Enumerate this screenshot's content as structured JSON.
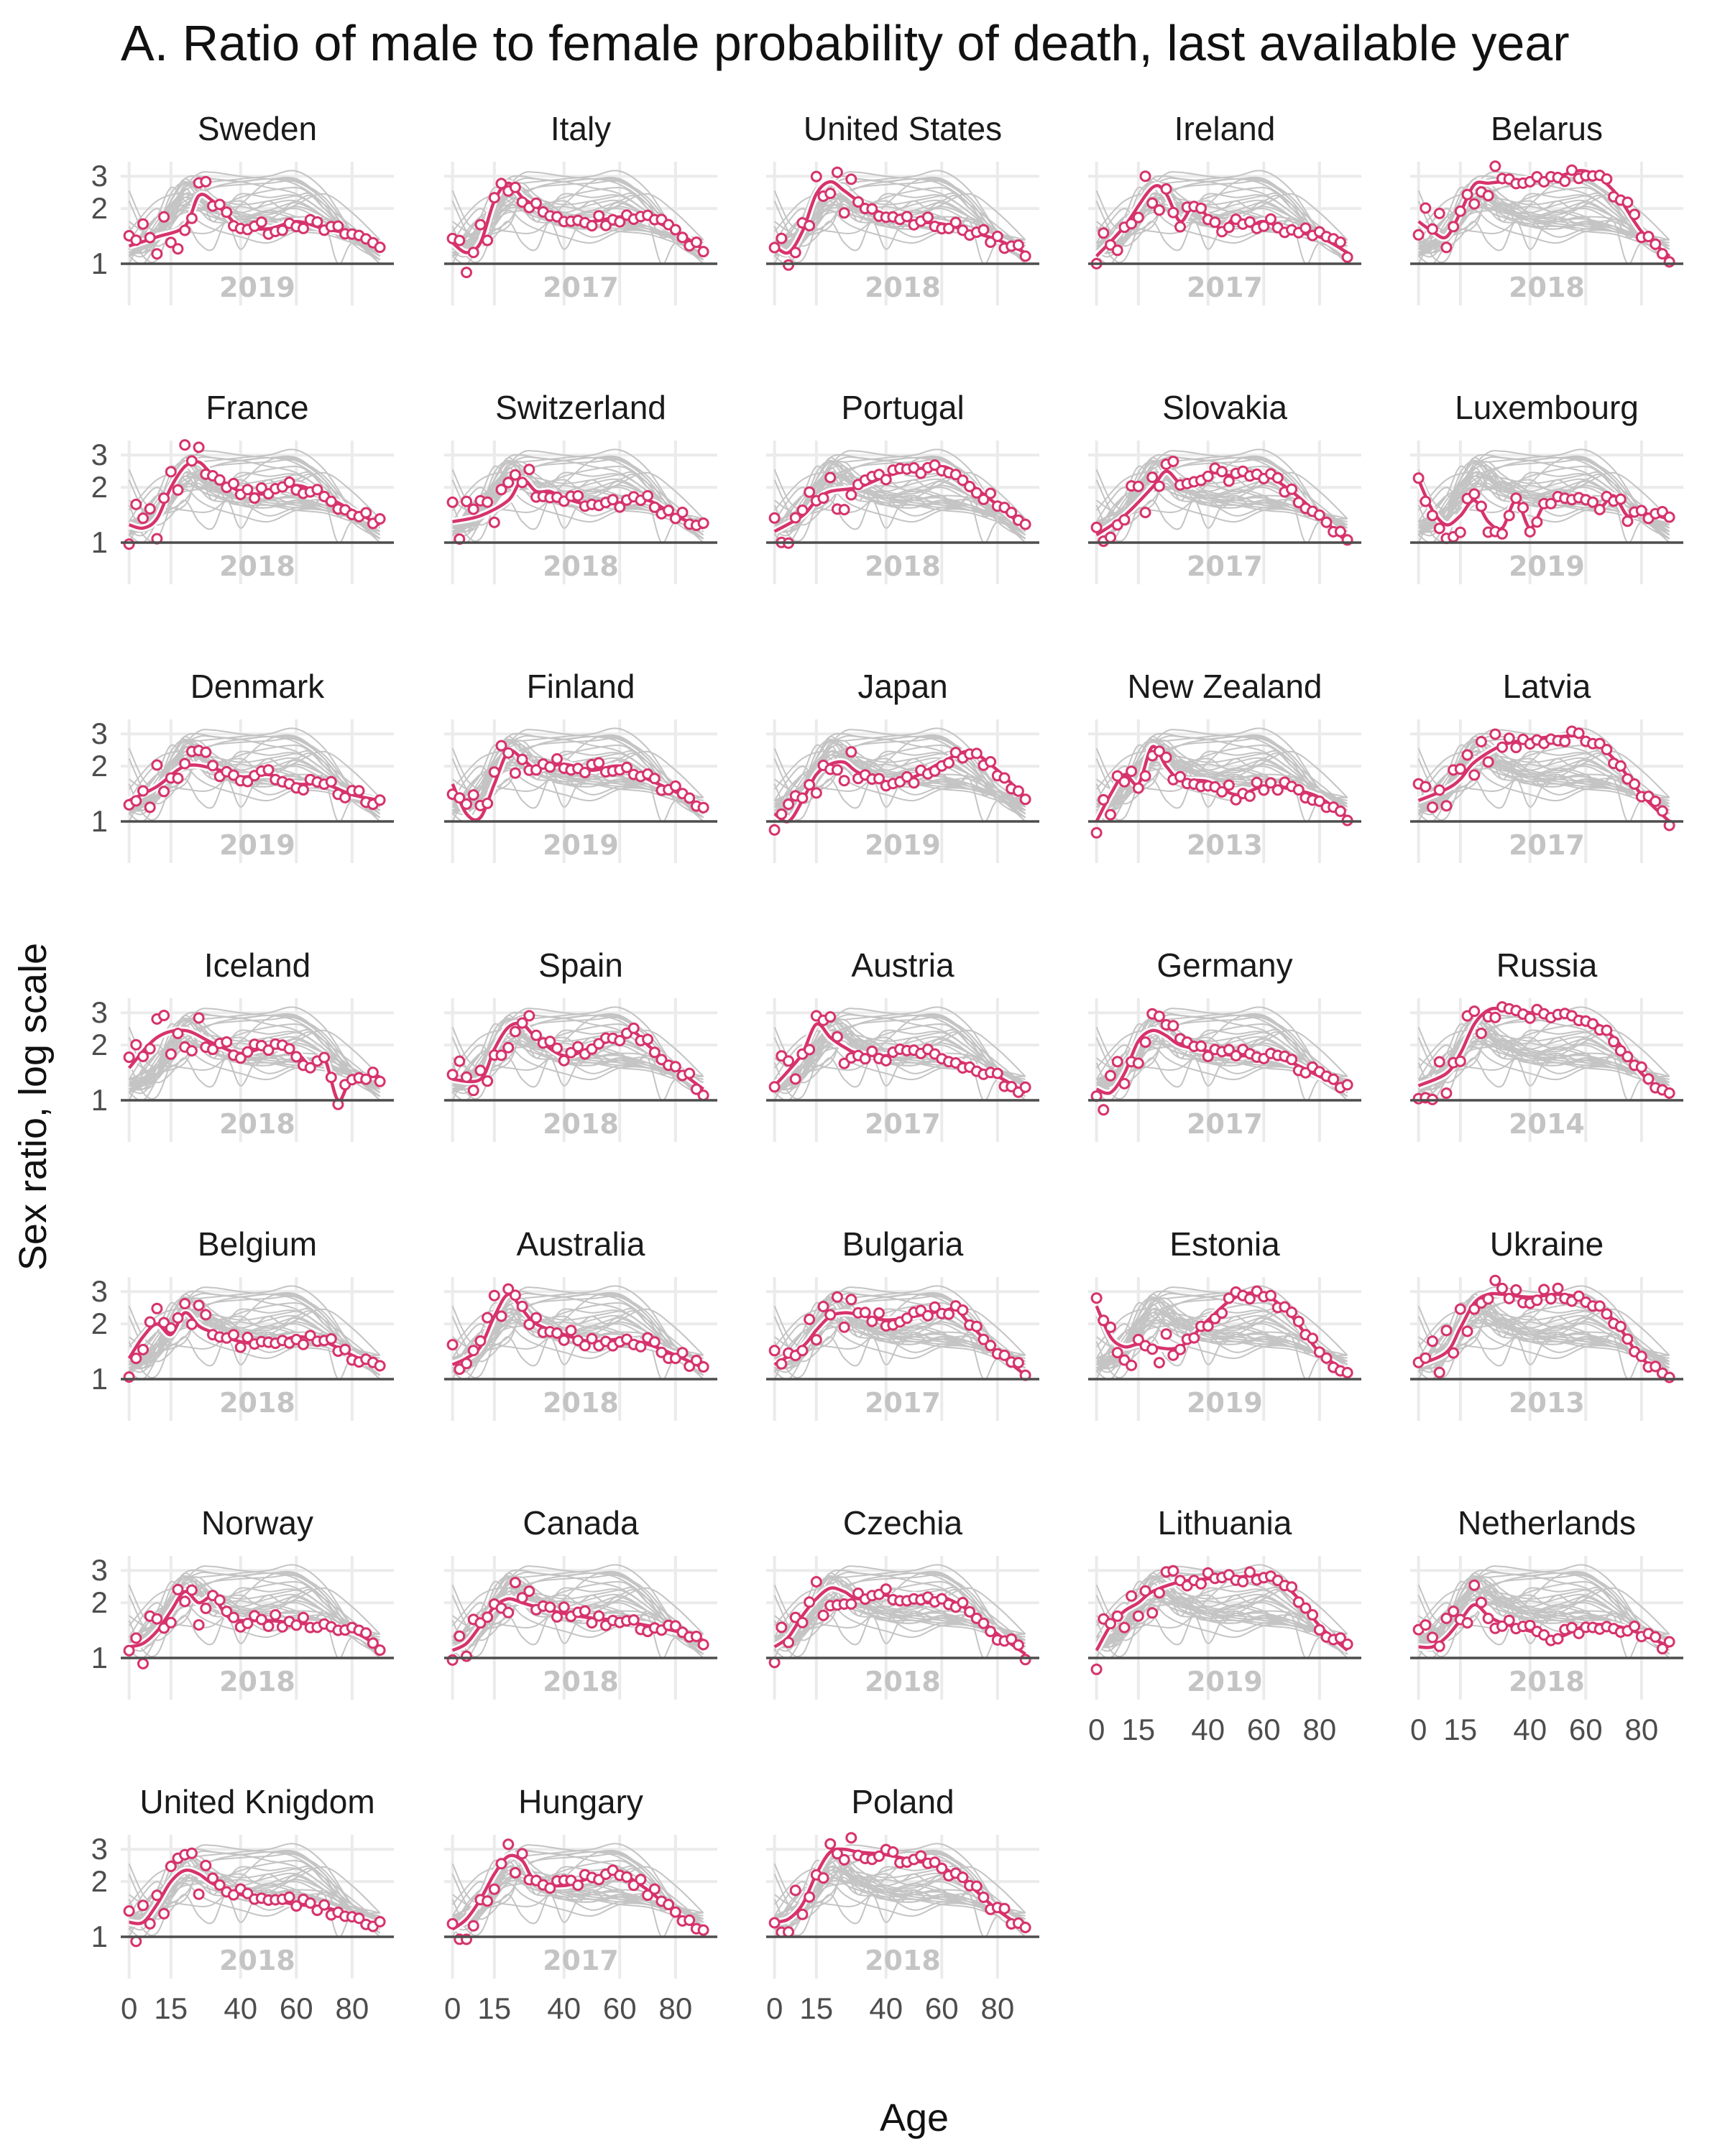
{
  "title": "A. Ratio of male to female probability of death, last available year",
  "xlabel": "Age",
  "ylabel": "Sex ratio, log scale",
  "colors": {
    "highlight": "#d6336c",
    "background_lines": "#c4c4c4",
    "grid": "#ebebeb",
    "baseline": "#4d4d4d",
    "year_label": "#c4c4c4"
  },
  "chart_data": {
    "type": "line",
    "description_of_encoding": "small multiples; one panel per country; each country's smoothed curve highlighted with observed points, all other countries drawn in grey",
    "x_axis": {
      "label": "Age",
      "ticks": [
        0,
        15,
        40,
        60,
        80
      ],
      "range": [
        -3,
        95
      ]
    },
    "y_axis": {
      "label": "Sex ratio, log scale",
      "scale": "log",
      "ticks": [
        1,
        2,
        3
      ],
      "range": [
        0.85,
        3.6
      ]
    },
    "grid": true,
    "facets": [
      {
        "country": "Sweden",
        "year": "2019",
        "x": [
          0,
          10,
          20,
          25,
          30,
          35,
          40,
          50,
          60,
          70,
          80,
          90
        ],
        "y": [
          1.25,
          1.4,
          1.6,
          2.35,
          2.2,
          1.85,
          1.6,
          1.55,
          1.7,
          1.55,
          1.45,
          1.25
        ]
      },
      {
        "country": "Italy",
        "year": "2017",
        "x": [
          0,
          5,
          10,
          15,
          20,
          25,
          30,
          35,
          40,
          50,
          60,
          70,
          80,
          90
        ],
        "y": [
          1.3,
          1.15,
          1.3,
          2.2,
          2.75,
          2.3,
          2.05,
          1.8,
          1.75,
          1.7,
          1.8,
          1.75,
          1.5,
          1.2
        ]
      },
      {
        "country": "United States",
        "year": "2018",
        "x": [
          0,
          5,
          10,
          15,
          20,
          25,
          30,
          35,
          40,
          50,
          60,
          70,
          80,
          90
        ],
        "y": [
          1.25,
          1.15,
          1.5,
          2.4,
          2.8,
          2.5,
          2.2,
          2.0,
          1.85,
          1.7,
          1.65,
          1.5,
          1.35,
          1.15
        ]
      },
      {
        "country": "Ireland",
        "year": "2017",
        "x": [
          0,
          10,
          20,
          25,
          30,
          35,
          40,
          45,
          50,
          55,
          60,
          70,
          80,
          90
        ],
        "y": [
          1.1,
          1.6,
          2.6,
          2.4,
          1.7,
          2.1,
          1.8,
          1.55,
          1.8,
          1.6,
          1.7,
          1.5,
          1.4,
          1.15
        ]
      },
      {
        "country": "Belarus",
        "year": "2018",
        "x": [
          0,
          5,
          10,
          15,
          20,
          25,
          30,
          40,
          50,
          60,
          70,
          80,
          90
        ],
        "y": [
          1.7,
          1.5,
          1.4,
          1.9,
          2.7,
          2.75,
          2.8,
          2.9,
          3.0,
          3.2,
          2.5,
          1.5,
          1.1
        ]
      },
      {
        "country": "France",
        "year": "2018",
        "x": [
          0,
          5,
          10,
          15,
          20,
          25,
          30,
          40,
          50,
          60,
          70,
          80,
          90
        ],
        "y": [
          1.25,
          1.2,
          1.35,
          2.0,
          2.6,
          2.75,
          2.35,
          1.9,
          1.85,
          2.05,
          1.8,
          1.5,
          1.25
        ]
      },
      {
        "country": "Switzerland",
        "year": "2018",
        "x": [
          0,
          10,
          20,
          25,
          30,
          35,
          40,
          50,
          60,
          70,
          80,
          90
        ],
        "y": [
          1.3,
          1.4,
          1.7,
          2.2,
          1.9,
          1.9,
          1.75,
          1.6,
          1.65,
          1.7,
          1.4,
          1.2
        ]
      },
      {
        "country": "Portugal",
        "year": "2018",
        "x": [
          0,
          10,
          15,
          20,
          30,
          40,
          50,
          60,
          65,
          70,
          80,
          90
        ],
        "y": [
          1.15,
          1.4,
          1.7,
          1.9,
          2.0,
          2.3,
          2.5,
          2.6,
          2.4,
          2.1,
          1.6,
          1.2
        ]
      },
      {
        "country": "Slovakia",
        "year": "2017",
        "x": [
          0,
          10,
          20,
          25,
          30,
          35,
          40,
          50,
          60,
          70,
          80,
          90
        ],
        "y": [
          1.1,
          1.4,
          2.0,
          2.45,
          2.1,
          2.05,
          2.4,
          2.3,
          2.35,
          1.9,
          1.4,
          1.0
        ]
      },
      {
        "country": "Luxembourg",
        "year": "2019",
        "x": [
          0,
          5,
          10,
          15,
          20,
          25,
          30,
          35,
          40,
          45,
          50,
          60,
          65,
          70,
          75,
          80,
          90
        ],
        "y": [
          2.2,
          1.5,
          1.25,
          1.4,
          1.7,
          1.3,
          1.2,
          1.7,
          1.2,
          1.6,
          1.7,
          1.8,
          1.55,
          1.8,
          1.4,
          1.45,
          1.35
        ]
      },
      {
        "country": "Denmark",
        "year": "2019",
        "x": [
          0,
          10,
          20,
          30,
          40,
          50,
          60,
          70,
          80,
          90
        ],
        "y": [
          1.3,
          1.55,
          2.0,
          1.95,
          1.75,
          1.8,
          1.6,
          1.6,
          1.4,
          1.3
        ]
      },
      {
        "country": "Finland",
        "year": "2019",
        "x": [
          0,
          5,
          10,
          15,
          20,
          25,
          30,
          40,
          50,
          60,
          70,
          80,
          90
        ],
        "y": [
          1.6,
          1.1,
          1.05,
          1.6,
          2.4,
          2.2,
          1.95,
          2.05,
          1.9,
          2.0,
          1.7,
          1.45,
          1.2
        ]
      },
      {
        "country": "Japan",
        "year": "2019",
        "x": [
          0,
          5,
          10,
          15,
          20,
          25,
          30,
          40,
          50,
          60,
          70,
          80,
          90
        ],
        "y": [
          1.1,
          1.0,
          1.3,
          1.8,
          2.05,
          2.1,
          1.85,
          1.65,
          1.75,
          2.1,
          2.4,
          1.9,
          1.35
        ]
      },
      {
        "country": "New Zealand",
        "year": "2013",
        "x": [
          0,
          5,
          10,
          15,
          20,
          25,
          30,
          40,
          50,
          60,
          70,
          80,
          90
        ],
        "y": [
          1.0,
          1.4,
          1.8,
          1.6,
          2.55,
          2.0,
          1.7,
          1.65,
          1.4,
          1.55,
          1.5,
          1.35,
          1.05
        ]
      },
      {
        "country": "Latvia",
        "year": "2017",
        "x": [
          0,
          10,
          15,
          20,
          30,
          40,
          50,
          60,
          70,
          80,
          90
        ],
        "y": [
          1.3,
          1.5,
          1.7,
          2.1,
          2.6,
          2.8,
          2.9,
          2.85,
          2.2,
          1.4,
          1.0
        ]
      },
      {
        "country": "Iceland",
        "year": "2018",
        "x": [
          0,
          10,
          20,
          30,
          40,
          50,
          60,
          65,
          70,
          75,
          80,
          90
        ],
        "y": [
          1.5,
          2.2,
          2.4,
          2.05,
          1.8,
          1.95,
          1.8,
          1.55,
          1.7,
          1.0,
          1.3,
          1.35
        ]
      },
      {
        "country": "Spain",
        "year": "2018",
        "x": [
          0,
          10,
          15,
          20,
          25,
          30,
          40,
          50,
          60,
          65,
          70,
          80,
          90
        ],
        "y": [
          1.3,
          1.3,
          1.9,
          2.5,
          2.6,
          2.2,
          1.75,
          1.95,
          2.2,
          2.35,
          2.0,
          1.5,
          1.15
        ]
      },
      {
        "country": "Austria",
        "year": "2017",
        "x": [
          0,
          5,
          10,
          15,
          20,
          25,
          30,
          40,
          50,
          60,
          70,
          80,
          90
        ],
        "y": [
          1.2,
          1.45,
          1.8,
          2.6,
          2.2,
          1.95,
          1.8,
          1.75,
          1.9,
          1.75,
          1.55,
          1.35,
          1.1
        ]
      },
      {
        "country": "Germany",
        "year": "2017",
        "x": [
          0,
          5,
          10,
          15,
          20,
          25,
          30,
          40,
          50,
          60,
          70,
          80,
          90
        ],
        "y": [
          1.15,
          1.1,
          1.4,
          2.1,
          2.4,
          2.25,
          2.0,
          1.85,
          1.75,
          1.75,
          1.6,
          1.35,
          1.15
        ]
      },
      {
        "country": "Russia",
        "year": "2014",
        "x": [
          0,
          10,
          15,
          20,
          25,
          30,
          40,
          50,
          60,
          70,
          80,
          90
        ],
        "y": [
          1.2,
          1.4,
          1.8,
          2.6,
          3.1,
          3.15,
          3.0,
          2.9,
          2.8,
          2.2,
          1.4,
          1.05
        ]
      },
      {
        "country": "Belgium",
        "year": "2018",
        "x": [
          0,
          5,
          10,
          15,
          20,
          25,
          30,
          40,
          50,
          60,
          70,
          80,
          90
        ],
        "y": [
          1.3,
          1.7,
          2.0,
          1.75,
          2.3,
          1.95,
          1.8,
          1.6,
          1.55,
          1.7,
          1.6,
          1.35,
          1.15
        ]
      },
      {
        "country": "Australia",
        "year": "2018",
        "x": [
          0,
          5,
          10,
          15,
          20,
          25,
          30,
          40,
          50,
          60,
          70,
          80,
          90
        ],
        "y": [
          1.2,
          1.3,
          1.5,
          2.2,
          2.9,
          2.4,
          2.0,
          1.75,
          1.6,
          1.65,
          1.55,
          1.35,
          1.15
        ]
      },
      {
        "country": "Bulgaria",
        "year": "2017",
        "x": [
          0,
          10,
          15,
          20,
          25,
          30,
          40,
          50,
          60,
          65,
          70,
          80,
          90
        ],
        "y": [
          1.2,
          1.5,
          1.85,
          2.2,
          2.3,
          2.25,
          2.1,
          2.2,
          2.35,
          2.4,
          2.0,
          1.4,
          1.05
        ]
      },
      {
        "country": "Estonia",
        "year": "2019",
        "x": [
          0,
          5,
          10,
          15,
          20,
          30,
          40,
          50,
          60,
          70,
          80,
          90
        ],
        "y": [
          2.5,
          1.7,
          1.5,
          1.55,
          1.5,
          1.5,
          2.1,
          2.8,
          2.9,
          2.2,
          1.4,
          1.1
        ]
      },
      {
        "country": "Ukraine",
        "year": "2013",
        "x": [
          0,
          10,
          15,
          20,
          25,
          30,
          40,
          50,
          60,
          70,
          80,
          90
        ],
        "y": [
          1.2,
          1.4,
          1.9,
          2.6,
          2.9,
          2.9,
          2.8,
          2.9,
          2.7,
          2.1,
          1.3,
          1.05
        ]
      },
      {
        "country": "Norway",
        "year": "2018",
        "x": [
          0,
          5,
          10,
          15,
          20,
          25,
          30,
          35,
          40,
          50,
          60,
          70,
          80,
          90
        ],
        "y": [
          1.15,
          1.2,
          1.4,
          1.8,
          2.3,
          2.0,
          2.15,
          1.7,
          1.6,
          1.6,
          1.55,
          1.5,
          1.4,
          1.15
        ]
      },
      {
        "country": "Canada",
        "year": "2018",
        "x": [
          0,
          5,
          10,
          15,
          20,
          25,
          30,
          40,
          50,
          60,
          70,
          80,
          90
        ],
        "y": [
          1.1,
          1.2,
          1.5,
          1.9,
          2.1,
          2.0,
          1.9,
          1.75,
          1.65,
          1.6,
          1.5,
          1.4,
          1.25
        ]
      },
      {
        "country": "Czechia",
        "year": "2018",
        "x": [
          0,
          5,
          10,
          15,
          20,
          25,
          30,
          40,
          45,
          50,
          55,
          60,
          70,
          80,
          90
        ],
        "y": [
          1.15,
          1.3,
          1.7,
          2.1,
          2.4,
          2.3,
          2.1,
          2.2,
          2.0,
          2.2,
          2.0,
          2.15,
          1.8,
          1.35,
          1.05
        ]
      },
      {
        "country": "Lithuania",
        "year": "2019",
        "x": [
          0,
          5,
          10,
          15,
          20,
          30,
          40,
          50,
          60,
          70,
          80,
          90
        ],
        "y": [
          1.1,
          1.5,
          1.8,
          2.0,
          2.3,
          2.6,
          2.7,
          2.75,
          2.8,
          2.3,
          1.5,
          1.1
        ]
      },
      {
        "country": "Netherlands",
        "year": "2018",
        "x": [
          0,
          5,
          10,
          15,
          20,
          25,
          30,
          40,
          50,
          60,
          70,
          80,
          90
        ],
        "y": [
          1.15,
          1.15,
          1.3,
          1.6,
          1.95,
          1.7,
          1.55,
          1.4,
          1.3,
          1.5,
          1.5,
          1.35,
          1.15
        ]
      },
      {
        "country": "United Knigdom",
        "year": "2018",
        "x": [
          0,
          5,
          10,
          15,
          20,
          25,
          30,
          40,
          50,
          60,
          70,
          80,
          90
        ],
        "y": [
          1.2,
          1.2,
          1.5,
          2.0,
          2.3,
          2.2,
          1.95,
          1.7,
          1.6,
          1.5,
          1.45,
          1.3,
          1.15
        ]
      },
      {
        "country": "Hungary",
        "year": "2017",
        "x": [
          0,
          5,
          10,
          15,
          20,
          25,
          30,
          40,
          50,
          60,
          70,
          80,
          90
        ],
        "y": [
          1.1,
          1.25,
          1.6,
          2.2,
          2.75,
          2.6,
          2.0,
          1.9,
          2.1,
          2.2,
          1.8,
          1.35,
          1.05
        ]
      },
      {
        "country": "Poland",
        "year": "2018",
        "x": [
          0,
          5,
          10,
          15,
          20,
          25,
          30,
          40,
          50,
          60,
          70,
          80,
          90
        ],
        "y": [
          1.2,
          1.25,
          1.5,
          2.2,
          2.9,
          3.0,
          2.9,
          2.8,
          2.6,
          2.4,
          1.9,
          1.4,
          1.1
        ]
      }
    ]
  }
}
